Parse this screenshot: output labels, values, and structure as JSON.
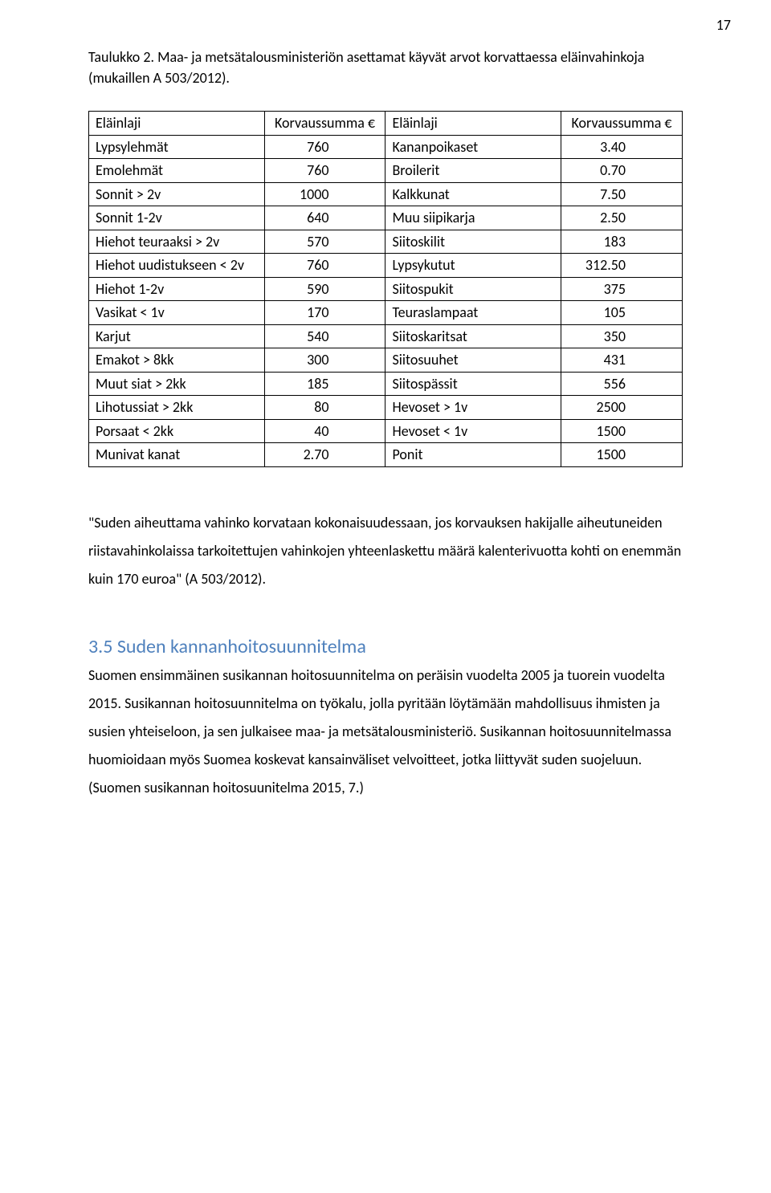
{
  "pageNumber": "17",
  "tableCaption": "Taulukko 2. Maa- ja metsätalousministeriön asettamat käyvät arvot korvattaessa eläinvahinkoja (mukaillen A 503/2012).",
  "table": {
    "headers": [
      "Eläinlaji",
      "Korvaussumma €",
      "Eläinlaji",
      "Korvaussumma €"
    ],
    "rows": [
      [
        "Lypsylehmät",
        "760",
        "Kananpoikaset",
        "3.40"
      ],
      [
        "Emolehmät",
        "760",
        "Broilerit",
        "0.70"
      ],
      [
        "Sonnit > 2v",
        "1000",
        "Kalkkunat",
        "7.50"
      ],
      [
        "Sonnit 1-2v",
        "640",
        "Muu siipikarja",
        "2.50"
      ],
      [
        "Hiehot teuraaksi > 2v",
        "570",
        "Siitoskilit",
        "183"
      ],
      [
        "Hiehot uudistukseen < 2v",
        "760",
        "Lypsykutut",
        "312.50"
      ],
      [
        "Hiehot 1-2v",
        "590",
        "Siitospukit",
        "375"
      ],
      [
        "Vasikat < 1v",
        "170",
        "Teuraslampaat",
        "105"
      ],
      [
        "Karjut",
        "540",
        "Siitoskaritsat",
        "350"
      ],
      [
        "Emakot > 8kk",
        "300",
        "Siitosuuhet",
        "431"
      ],
      [
        "Muut siat > 2kk",
        "185",
        "Siitospässit",
        "556"
      ],
      [
        "Lihotussiat > 2kk",
        "80",
        "Hevoset > 1v",
        "2500"
      ],
      [
        "Porsaat < 2kk",
        "40",
        "Hevoset < 1v",
        "1500"
      ],
      [
        "Munivat kanat",
        "2.70",
        "Ponit",
        "1500"
      ]
    ]
  },
  "para1": "\"Suden aiheuttama vahinko korvataan kokonaisuudessaan, jos korvauksen hakijalle aiheutuneiden riistavahinkolaissa tarkoitettujen vahinkojen yhteenlaskettu määrä kalenterivuotta kohti on enemmän kuin 170 euroa\" (A 503/2012).",
  "heading": "3.5 Suden kannanhoitosuunnitelma",
  "headingColor": "#4f81bd",
  "para2": "Suomen ensimmäinen susikannan hoitosuunnitelma on peräisin vuodelta 2005 ja tuorein vuodelta 2015. Susikannan hoitosuunnitelma on työkalu, jolla pyritään löytämään mahdollisuus ihmisten ja susien yhteiseloon, ja sen julkaisee maa- ja metsätalousministeriö. Susikannan hoitosuunnitelmassa huomioidaan myös Suomea koskevat kansainväliset velvoitteet, jotka liittyvät suden suojeluun. (Suomen susikannan hoitosuunitelma 2015, 7.)"
}
